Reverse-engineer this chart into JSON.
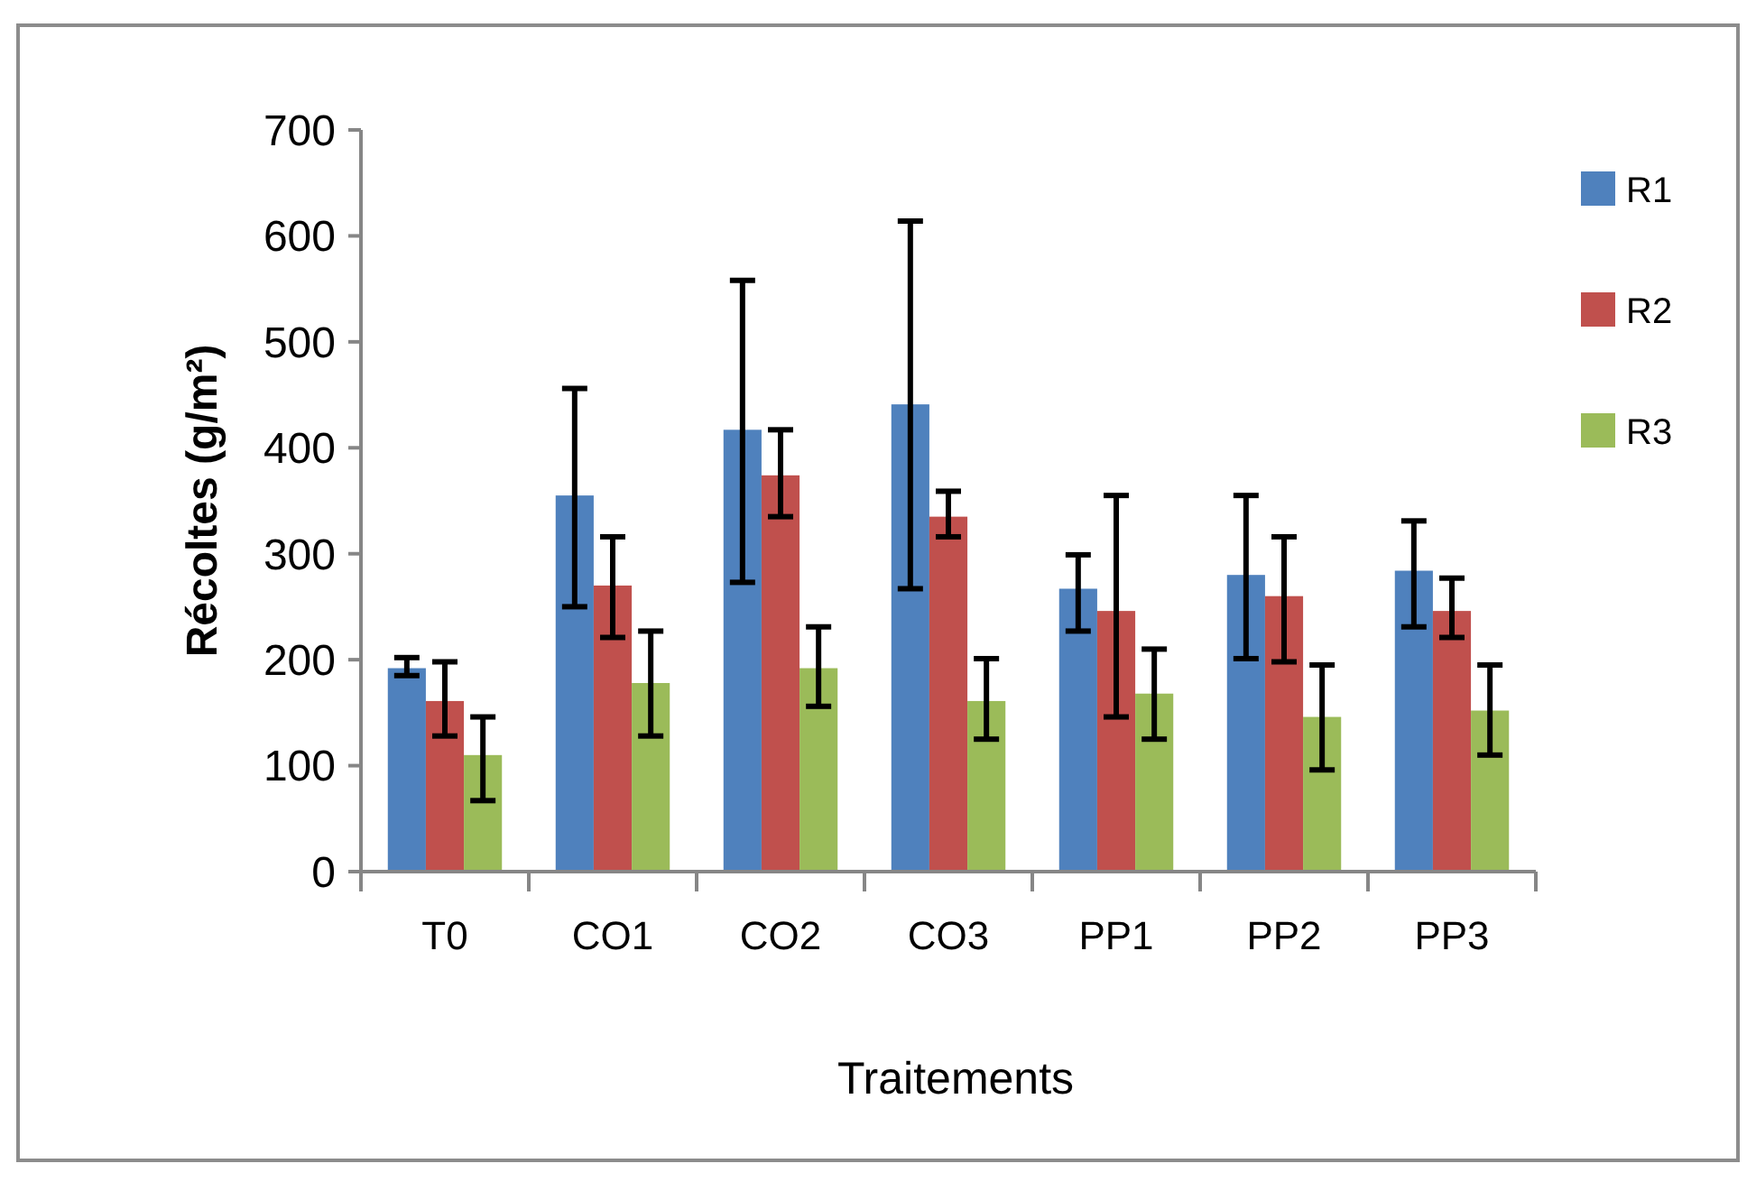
{
  "chart_data": {
    "type": "bar",
    "xlabel": "Traitements",
    "ylabel": "Récoltes (g/m²)",
    "categories": [
      "T0",
      "CO1",
      "CO2",
      "CO3",
      "PP1",
      "PP2",
      "PP3"
    ],
    "series": [
      {
        "name": "R1",
        "color": "#4f81bd",
        "values": [
          192,
          355,
          417,
          441,
          267,
          280,
          284
        ],
        "errors": [
          [
            185,
            202
          ],
          [
            250,
            456
          ],
          [
            273,
            558
          ],
          [
            267,
            614
          ],
          [
            227,
            299
          ],
          [
            201,
            355
          ],
          [
            231,
            331
          ]
        ]
      },
      {
        "name": "R2",
        "color": "#c0504d",
        "values": [
          161,
          270,
          374,
          335,
          246,
          260,
          246
        ],
        "errors": [
          [
            128,
            198
          ],
          [
            221,
            316
          ],
          [
            335,
            417
          ],
          [
            316,
            359
          ],
          [
            146,
            355
          ],
          [
            198,
            316
          ],
          [
            221,
            277
          ]
        ]
      },
      {
        "name": "R3",
        "color": "#9bbb59",
        "values": [
          110,
          178,
          192,
          161,
          168,
          146,
          152
        ],
        "errors": [
          [
            67,
            146
          ],
          [
            128,
            227
          ],
          [
            156,
            231
          ],
          [
            125,
            201
          ],
          [
            125,
            210
          ],
          [
            96,
            195
          ],
          [
            110,
            195
          ]
        ]
      }
    ],
    "ylim": [
      0,
      700
    ],
    "yticks": [
      0,
      100,
      200,
      300,
      400,
      500,
      600,
      700
    ],
    "grid": false,
    "legend": "right"
  }
}
